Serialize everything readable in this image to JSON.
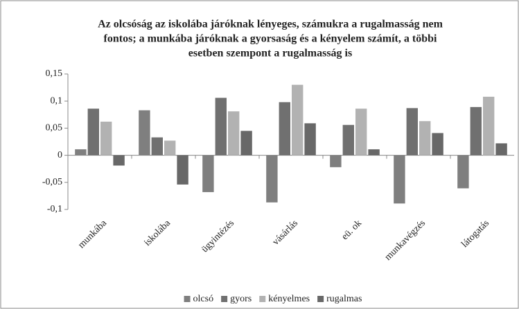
{
  "chart_data": {
    "type": "bar",
    "title": [
      "Az olcsóság az iskolába járóknak lényeges, számukra a rugalmasság nem",
      "fontos; a munkába járóknak a gyorsaság és a kényelem számít, a többi",
      "esetben szempont a rugalmasság is"
    ],
    "categories": [
      "munkába",
      "iskolába",
      "ügyintézés",
      "vásárlás",
      "eü. ok",
      "munkavégzés",
      "látogatás"
    ],
    "series": [
      {
        "name": "olcsó",
        "color": "#7f7f7f",
        "values": [
          0.011,
          0.083,
          -0.068,
          -0.087,
          -0.022,
          -0.089,
          -0.061
        ]
      },
      {
        "name": "gyors",
        "color": "#707070",
        "values": [
          0.086,
          0.033,
          0.106,
          0.098,
          0.056,
          0.087,
          0.089
        ]
      },
      {
        "name": "kényelmes",
        "color": "#b2b2b2",
        "values": [
          0.062,
          0.027,
          0.081,
          0.13,
          0.086,
          0.063,
          0.108
        ]
      },
      {
        "name": "rugalmas",
        "color": "#686868",
        "values": [
          -0.019,
          -0.054,
          0.045,
          0.059,
          0.011,
          0.041,
          0.022
        ]
      }
    ],
    "ylim": [
      -0.1,
      0.15
    ],
    "yticks": [
      {
        "value": 0.15,
        "label": "0,15"
      },
      {
        "value": 0.1,
        "label": "0,1"
      },
      {
        "value": 0.05,
        "label": "0,05"
      },
      0,
      {
        "value": -0.05,
        "label": "-0,05"
      },
      {
        "value": -0.1,
        "label": "-0,1"
      }
    ],
    "grid": false,
    "legend": "bottom"
  }
}
